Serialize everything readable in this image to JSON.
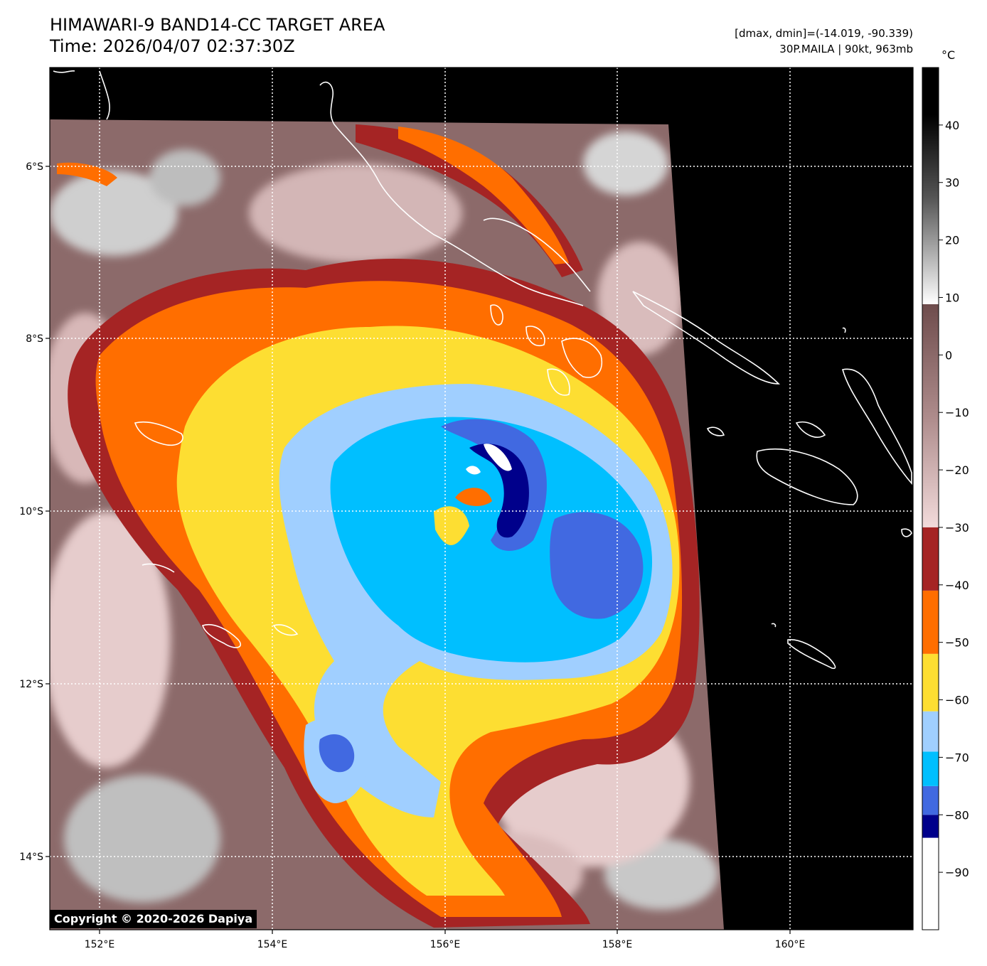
{
  "header": {
    "title_line1": "HIMAWARI-9 BAND14-CC TARGET AREA",
    "title_line2": "Time: 2026/04/07 02:37:30Z",
    "info_line1": "[dmax, dmin]=(-14.019, -90.339)",
    "info_line2": "30P.MAILA | 90kt, 963mb"
  },
  "axes": {
    "x_ticks": [
      "152°E",
      "154°E",
      "156°E",
      "158°E",
      "160°E"
    ],
    "y_ticks": [
      "6°S",
      "8°S",
      "10°S",
      "12°S",
      "14°S"
    ]
  },
  "colorbar": {
    "unit": "°C",
    "ticks": [
      "40",
      "30",
      "20",
      "10",
      "0",
      "−10",
      "−20",
      "−30",
      "−40",
      "−50",
      "−60",
      "−70",
      "−80",
      "−90"
    ],
    "range": [
      -100,
      50
    ],
    "bands": [
      {
        "from": -100,
        "to": -84,
        "color": "#ffffff"
      },
      {
        "from": -84,
        "to": -80,
        "color": "#00008b"
      },
      {
        "from": -80,
        "to": -75,
        "color": "#4169e1"
      },
      {
        "from": -75,
        "to": -69,
        "color": "#00bfff"
      },
      {
        "from": -69,
        "to": -62,
        "color": "#a0cfff"
      },
      {
        "from": -62,
        "to": -52,
        "color": "#fdde32"
      },
      {
        "from": -52,
        "to": -41,
        "color": "#ff6e00"
      },
      {
        "from": -41,
        "to": -30,
        "color": "#a52424"
      }
    ]
  },
  "copyright": "Copyright © 2020-2026 Dapiya",
  "colors": {
    "background": "#000000",
    "cloud_warm": "#8c6a6a",
    "cloud_light": "#e6cccc",
    "coastline": "#ffffff",
    "grid": "#ffffff"
  }
}
